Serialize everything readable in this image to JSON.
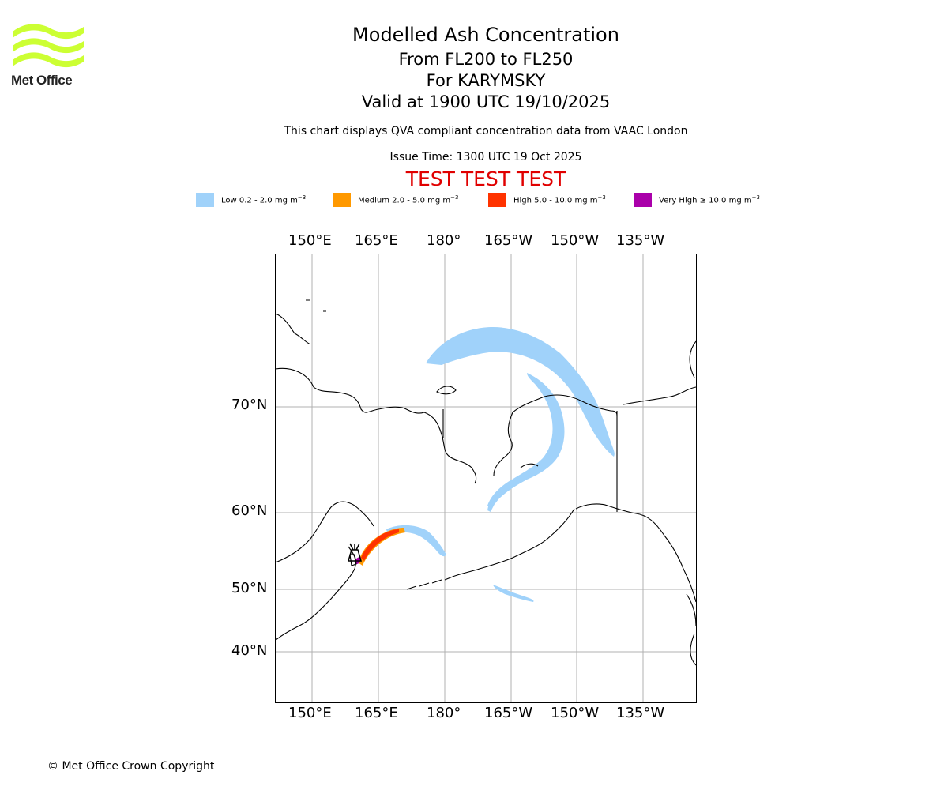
{
  "header": {
    "title": "Modelled Ash Concentration",
    "level": "From FL200 to FL250",
    "volcano": "For KARYMSKY",
    "valid": "Valid at 1900 UTC 19/10/2025",
    "description": "This chart displays QVA compliant concentration data from VAAC London",
    "issue_time": "Issue Time: 1300 UTC 19 Oct 2025",
    "test_banner": "TEST TEST TEST"
  },
  "logo": {
    "text": "Met Office",
    "icon": "met-office-wave-logo",
    "color": "#ccff33"
  },
  "legend": [
    {
      "label": "Low 0.2 - 2.0 mg m",
      "unit_sup": "−3",
      "color": "#a0d2fa"
    },
    {
      "label": "Medium 2.0 - 5.0 mg m",
      "unit_sup": "−3",
      "color": "#ff9900"
    },
    {
      "label": "High 5.0 - 10.0 mg m",
      "unit_sup": "−3",
      "color": "#ff3300"
    },
    {
      "label": "Very High  ≥  10.0 mg m",
      "unit_sup": "−3",
      "color": "#aa00aa"
    }
  ],
  "map": {
    "lon_labels": [
      "150°E",
      "165°E",
      "180°",
      "165°W",
      "150°W",
      "135°W"
    ],
    "lat_labels": [
      "70°N",
      "60°N",
      "50°N",
      "40°N"
    ],
    "volcano_marker": "volcano-icon",
    "coast_color": "#000000",
    "grid_color": "#b0b0b0"
  },
  "footer": {
    "copyright": "© Met Office Crown Copyright"
  }
}
